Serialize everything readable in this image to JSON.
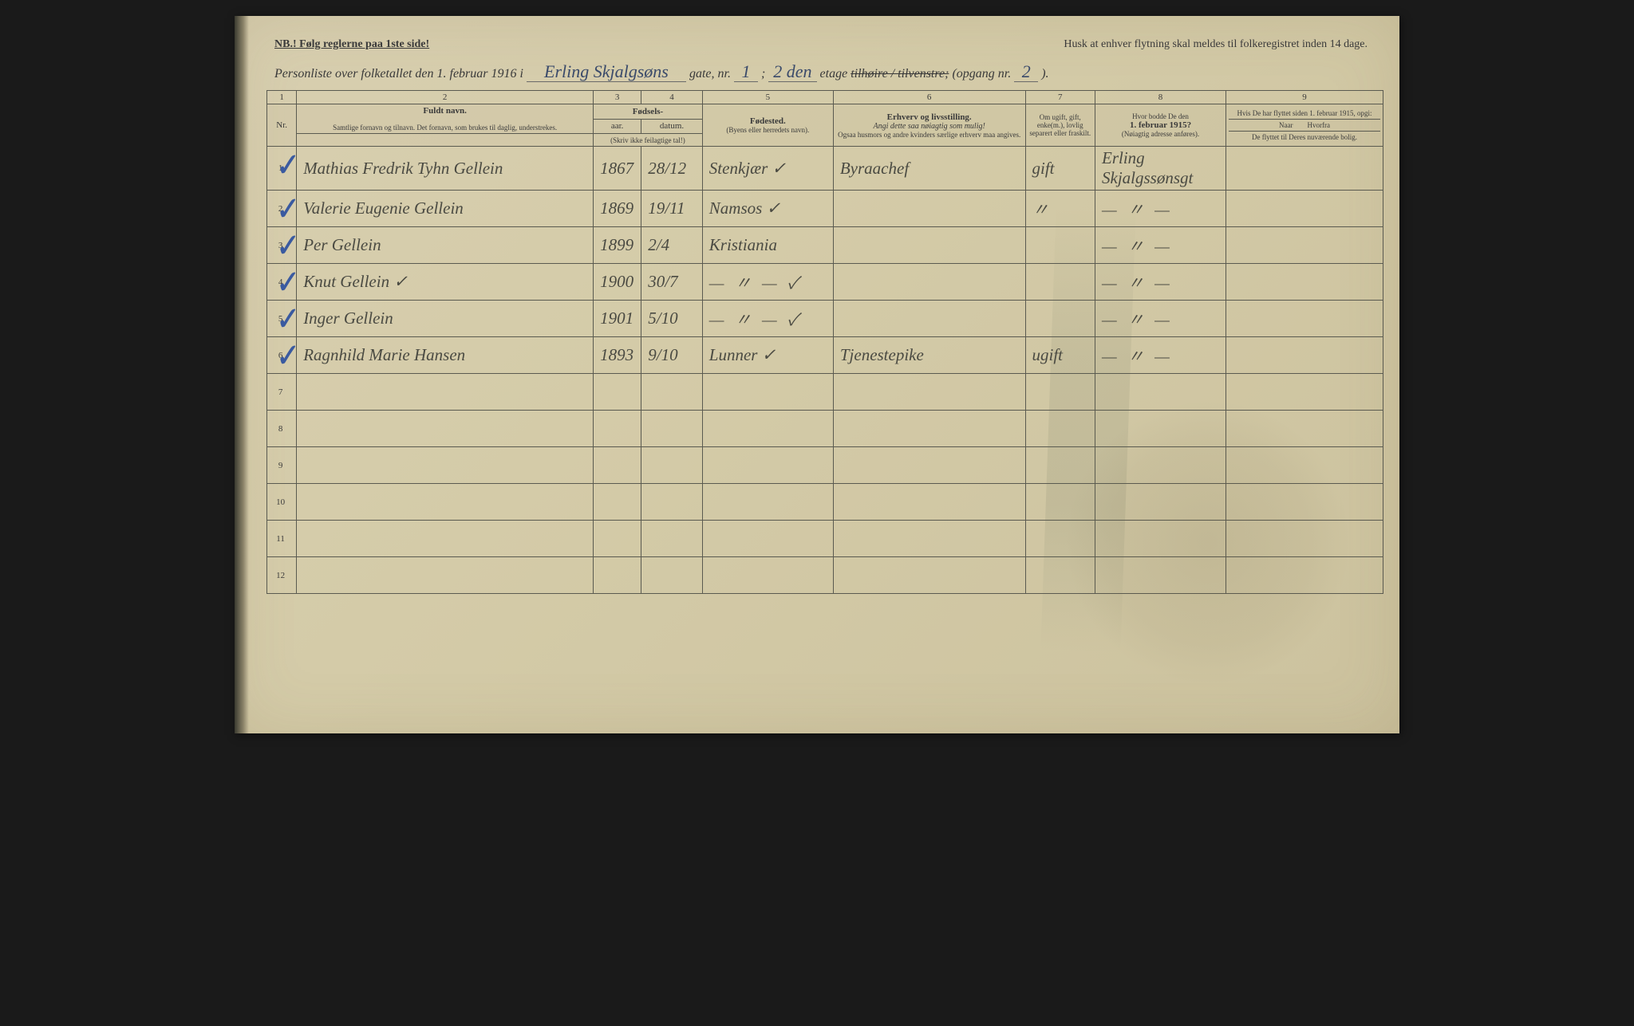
{
  "document_type": "census-form",
  "colors": {
    "paper": "#d4cba8",
    "print_ink": "#3a3a3a",
    "rule_lines": "#5a5a50",
    "handwriting_blue": "#3a5aa0",
    "handwriting_ink": "#4a4a42"
  },
  "typography": {
    "print_font": "serif",
    "print_size_pt": 11,
    "header_italic": true,
    "handwriting_font": "cursive",
    "handwriting_size_pt": 21
  },
  "topbar": {
    "left": "NB.! Følg reglerne paa 1ste side!",
    "right": "Husk at enhver flytning skal meldes til folkeregistret inden 14 dage."
  },
  "titleline": {
    "prefix": "Personliste over folketallet den 1. februar 1916 i",
    "street": "Erling Skjalgsøns",
    "t2": "gate, nr.",
    "house_nr": "1",
    "t3": ";",
    "floor": "2 den",
    "t4": "etage",
    "strike": "tilhøire / tilvenstre;",
    "t5": "(opgang nr.",
    "entrance": "2",
    "t6": ")."
  },
  "column_numbers": [
    "1",
    "2",
    "3",
    "4",
    "5",
    "6",
    "7",
    "8",
    "9"
  ],
  "headers": {
    "nr": "Nr.",
    "name_title": "Fuldt navn.",
    "name_sub": "Samtlige fornavn og tilnavn. Det fornavn, som brukes til daglig, understrekes.",
    "birth_title": "Fødsels-",
    "year": "aar.",
    "date": "datum.",
    "birth_foot": "(Skriv ikke feilagtige tal!)",
    "birthplace_title": "Fødested.",
    "birthplace_sub": "(Byens eller herredets navn).",
    "occ_title": "Erhverv og livsstilling.",
    "occ_sub1": "Angi dette saa nøiagtig som mulig!",
    "occ_sub2": "Ogsaa husmors og andre kvinders særlige erhverv maa angives.",
    "marital": "Om ugift, gift, enke(m.), lovlig separert eller fraskilt.",
    "prev_title": "Hvor bodde De den",
    "prev_date": "1. februar 1915?",
    "prev_sub": "(Nøiagtig adresse anføres).",
    "moved_title": "Hvis De har flyttet siden 1. februar 1915, opgi:",
    "moved_cols": "Naar  Hvorfra",
    "moved_sub": "De flyttet til Deres nuværende bolig."
  },
  "rows": [
    {
      "nr": "1",
      "check": true,
      "name": "Mathias Fredrik Tyhn Gellein",
      "year": "1867",
      "date": "28/12",
      "birthplace": "Stenkjær ✓",
      "occ": "Byraachef",
      "marital": "gift",
      "prev": "Erling Skjalgssønsgt",
      "moved": ""
    },
    {
      "nr": "2",
      "check": true,
      "name": "Valerie Eugenie Gellein",
      "year": "1869",
      "date": "19/11",
      "birthplace": "Namsos ✓",
      "occ": "",
      "marital": "〃",
      "prev": "— 〃 —",
      "moved": ""
    },
    {
      "nr": "3",
      "check": true,
      "name": "Per Gellein",
      "year": "1899",
      "date": "2/4",
      "birthplace": "Kristiania",
      "occ": "",
      "marital": "",
      "prev": "— 〃 —",
      "moved": ""
    },
    {
      "nr": "4",
      "check": true,
      "name": "Knut Gellein ✓",
      "year": "1900",
      "date": "30/7",
      "birthplace": "— 〃 — ✓",
      "occ": "",
      "marital": "",
      "prev": "— 〃 —",
      "moved": ""
    },
    {
      "nr": "5",
      "check": true,
      "name": "Inger Gellein",
      "year": "1901",
      "date": "5/10",
      "birthplace": "— 〃 — ✓",
      "occ": "",
      "marital": "",
      "prev": "— 〃 —",
      "moved": ""
    },
    {
      "nr": "6",
      "check": true,
      "name": "Ragnhild Marie Hansen",
      "year": "1893",
      "date": "9/10",
      "birthplace": "Lunner ✓",
      "occ": "Tjenestepike",
      "marital": "ugift",
      "prev": "— 〃 —",
      "moved": ""
    },
    {
      "nr": "7",
      "check": false,
      "name": "",
      "year": "",
      "date": "",
      "birthplace": "",
      "occ": "",
      "marital": "",
      "prev": "",
      "moved": ""
    },
    {
      "nr": "8",
      "check": false,
      "name": "",
      "year": "",
      "date": "",
      "birthplace": "",
      "occ": "",
      "marital": "",
      "prev": "",
      "moved": ""
    },
    {
      "nr": "9",
      "check": false,
      "name": "",
      "year": "",
      "date": "",
      "birthplace": "",
      "occ": "",
      "marital": "",
      "prev": "",
      "moved": ""
    },
    {
      "nr": "10",
      "check": false,
      "name": "",
      "year": "",
      "date": "",
      "birthplace": "",
      "occ": "",
      "marital": "",
      "prev": "",
      "moved": ""
    },
    {
      "nr": "11",
      "check": false,
      "name": "",
      "year": "",
      "date": "",
      "birthplace": "",
      "occ": "",
      "marital": "",
      "prev": "",
      "moved": ""
    },
    {
      "nr": "12",
      "check": false,
      "name": "",
      "year": "",
      "date": "",
      "birthplace": "",
      "occ": "",
      "marital": "",
      "prev": "",
      "moved": ""
    }
  ]
}
